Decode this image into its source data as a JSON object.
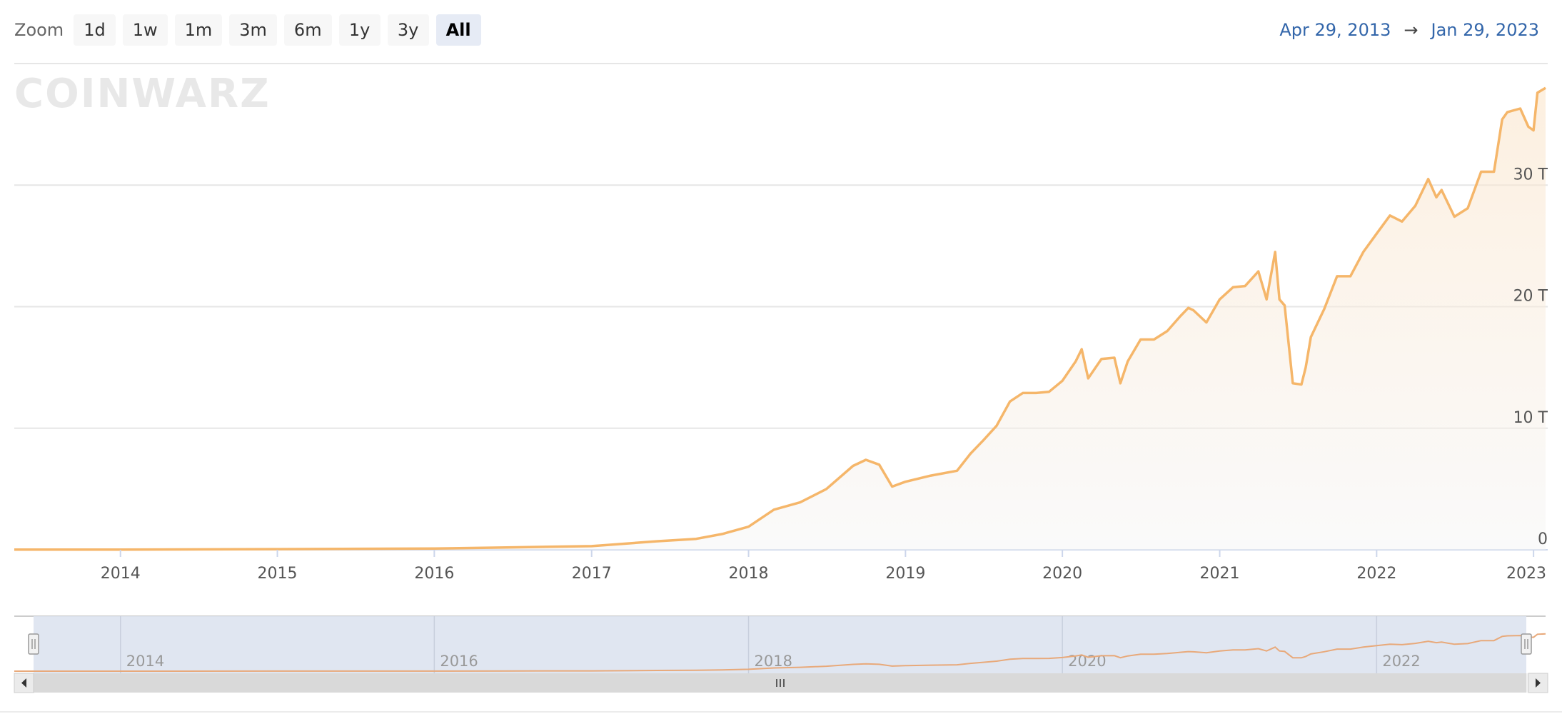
{
  "toolbar": {
    "zoom_label": "Zoom",
    "buttons": [
      "1d",
      "1w",
      "1m",
      "3m",
      "6m",
      "1y",
      "3y",
      "All"
    ],
    "active": "All"
  },
  "range": {
    "from": "Apr 29, 2013",
    "arrow": "→",
    "to": "Jan 29, 2023"
  },
  "watermark": "COINWARZ",
  "colors": {
    "line": "#f5b66a",
    "grid": "#e6e6e6",
    "navigator_mask": "#dde3f0",
    "scrollbar": "#d9d9d9"
  },
  "chart_data": {
    "type": "area",
    "title": "",
    "xlabel": "",
    "ylabel": "",
    "xlim": [
      "2013-04-29",
      "2023-01-29"
    ],
    "ylim": [
      0,
      40
    ],
    "y_unit": "T",
    "y_ticks": [
      "0",
      "10 T",
      "20 T",
      "30 T"
    ],
    "x_ticks": [
      "2014",
      "2015",
      "2016",
      "2017",
      "2018",
      "2019",
      "2020",
      "2021",
      "2022",
      "2023"
    ],
    "navigator_ticks": [
      "2014",
      "2016",
      "2018",
      "2020",
      "2022"
    ],
    "grid": true,
    "series": [
      {
        "x": [
          "2013-04-29",
          "2014-01-01",
          "2015-01-01",
          "2016-01-01",
          "2016-07-01",
          "2017-01-01",
          "2017-06-01",
          "2017-09-01",
          "2017-11-01",
          "2018-01-01",
          "2018-03-01",
          "2018-05-01",
          "2018-07-01",
          "2018-09-01",
          "2018-10-01",
          "2018-11-01",
          "2018-12-01",
          "2019-01-01",
          "2019-03-01",
          "2019-05-01",
          "2019-06-01",
          "2019-07-01",
          "2019-08-01",
          "2019-09-01",
          "2019-10-01",
          "2019-11-01",
          "2019-12-01",
          "2020-01-01",
          "2020-02-01",
          "2020-02-15",
          "2020-03-01",
          "2020-04-01",
          "2020-05-01",
          "2020-05-15",
          "2020-06-01",
          "2020-07-01",
          "2020-08-01",
          "2020-09-01",
          "2020-10-01",
          "2020-10-20",
          "2020-11-01",
          "2020-12-01",
          "2021-01-01",
          "2021-02-01",
          "2021-03-01",
          "2021-04-01",
          "2021-04-20",
          "2021-05-10",
          "2021-05-20",
          "2021-06-01",
          "2021-06-20",
          "2021-07-10",
          "2021-07-20",
          "2021-08-01",
          "2021-09-01",
          "2021-10-01",
          "2021-11-01",
          "2021-12-01",
          "2022-01-01",
          "2022-02-01",
          "2022-03-01",
          "2022-04-01",
          "2022-05-01",
          "2022-05-20",
          "2022-06-01",
          "2022-07-01",
          "2022-08-01",
          "2022-09-01",
          "2022-10-01",
          "2022-10-20",
          "2022-11-01",
          "2022-12-01",
          "2022-12-20",
          "2023-01-01",
          "2023-01-10",
          "2023-01-29"
        ],
        "y": [
          0.01,
          0.02,
          0.05,
          0.1,
          0.2,
          0.3,
          0.7,
          0.9,
          1.3,
          1.9,
          3.3,
          3.9,
          5.0,
          6.9,
          7.4,
          7.0,
          5.2,
          5.6,
          6.1,
          6.5,
          7.9,
          9.0,
          10.2,
          12.2,
          12.9,
          12.9,
          13.0,
          13.9,
          15.5,
          16.5,
          14.1,
          15.7,
          15.8,
          13.7,
          15.5,
          17.3,
          17.3,
          18.0,
          19.2,
          19.9,
          19.7,
          18.7,
          20.6,
          21.6,
          21.7,
          22.9,
          20.6,
          24.5,
          20.6,
          20.1,
          13.7,
          13.6,
          15.0,
          17.5,
          19.8,
          22.5,
          22.5,
          24.5,
          26.0,
          27.5,
          27.0,
          28.3,
          30.5,
          29.0,
          29.6,
          27.4,
          28.1,
          31.1,
          31.1,
          35.4,
          36.0,
          36.3,
          34.8,
          34.5,
          37.6,
          38.0
        ]
      }
    ]
  }
}
